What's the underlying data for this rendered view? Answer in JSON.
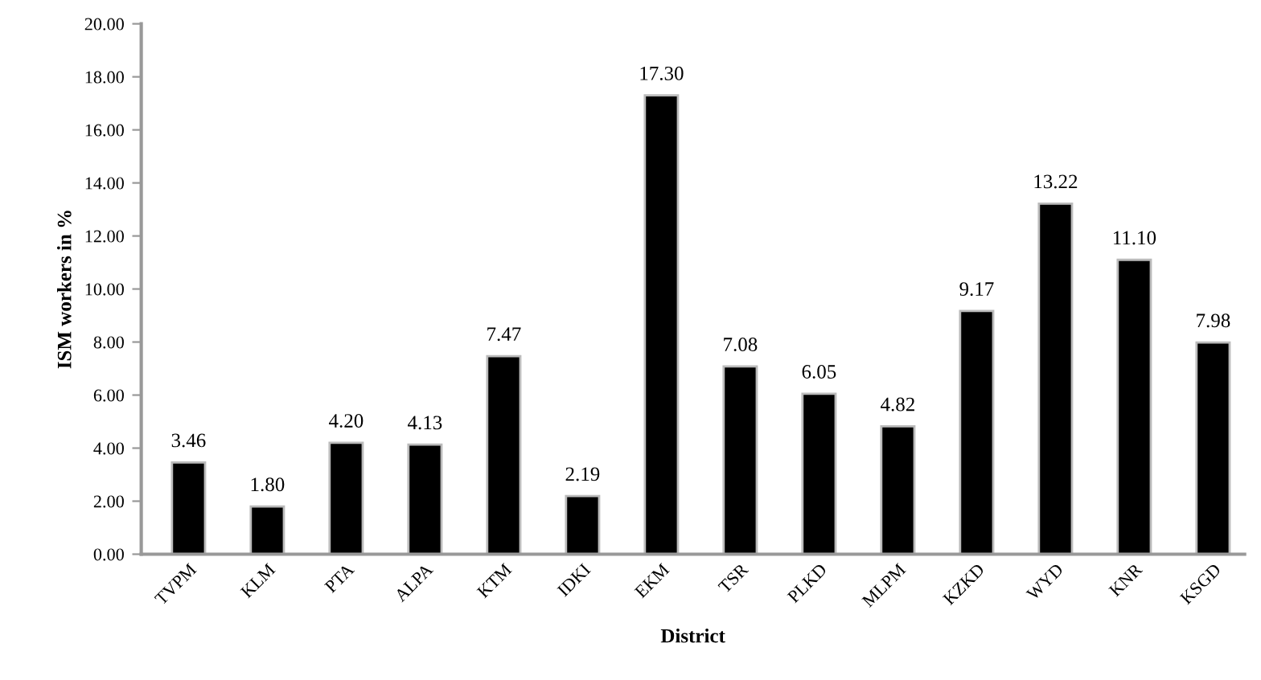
{
  "chart_data": {
    "type": "bar",
    "xlabel": "District",
    "ylabel": "ISM workers in %",
    "categories": [
      "TVPM",
      "KLM",
      "PTA",
      "ALPA",
      "KTM",
      "IDKI",
      "EKM",
      "TSR",
      "PLKD",
      "MLPM",
      "KZKD",
      "WYD",
      "KNR",
      "KSGD"
    ],
    "values": [
      3.46,
      1.8,
      4.2,
      4.13,
      7.47,
      2.19,
      17.3,
      7.08,
      6.05,
      4.82,
      9.17,
      13.22,
      11.1,
      7.98
    ],
    "value_labels": [
      "3.46",
      "1.80",
      "4.20",
      "4.13",
      "7.47",
      "2.19",
      "17.30",
      "7.08",
      "6.05",
      "4.82",
      "9.17",
      "13.22",
      "11.10",
      "7.98"
    ],
    "color": "#000000",
    "ylim": [
      0,
      20
    ],
    "yticks": [
      {
        "value": 0,
        "label": "0.00"
      },
      {
        "value": 2,
        "label": "2.00"
      },
      {
        "value": 4,
        "label": "4.00"
      },
      {
        "value": 6,
        "label": "6.00"
      },
      {
        "value": 8,
        "label": "8.00"
      },
      {
        "value": 10,
        "label": "10.00"
      },
      {
        "value": 12,
        "label": "12.00"
      },
      {
        "value": 14,
        "label": "14.00"
      },
      {
        "value": 16,
        "label": "16.00"
      },
      {
        "value": 18,
        "label": "18.00"
      },
      {
        "value": 20,
        "label": "20.00"
      }
    ],
    "grid": false
  }
}
